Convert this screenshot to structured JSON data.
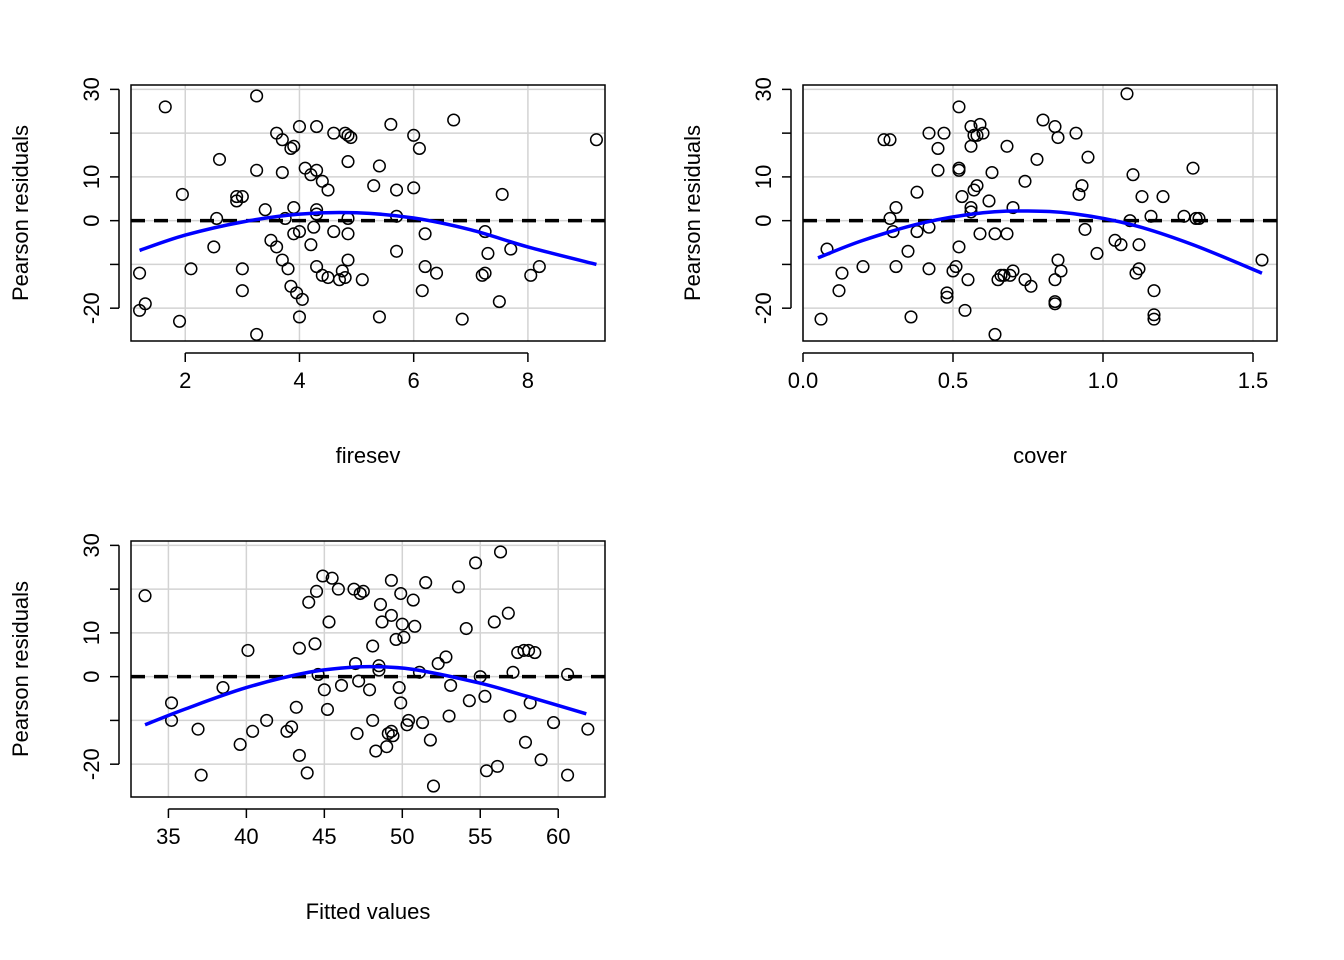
{
  "colors": {
    "fit_line": "#0000ff",
    "grid": "#d3d3d3",
    "zero_line": "#000000",
    "points": "#000000"
  },
  "chart_data": [
    {
      "type": "scatter",
      "xlabel": "firesev",
      "ylabel": "Pearson residuals",
      "xlim": [
        1.05,
        9.35
      ],
      "ylim": [
        -27.5,
        31
      ],
      "xticks": [
        2,
        4,
        6,
        8
      ],
      "yticks": [
        -20,
        -10,
        0,
        10,
        20,
        30
      ],
      "ytick_labels": [
        "-20",
        "",
        "0",
        "10",
        "",
        "30"
      ],
      "grid": true,
      "zero_line": true,
      "fit_curve": {
        "x": [
          1.2,
          2,
          3,
          4,
          5,
          6,
          7,
          8,
          9.2
        ],
        "y": [
          -6.8,
          -3.3,
          -0.3,
          1.5,
          1.8,
          0.6,
          -2.1,
          -6.0,
          -10.0
        ]
      },
      "points": [
        [
          1.2,
          -12
        ],
        [
          1.2,
          -20.5
        ],
        [
          1.3,
          -19
        ],
        [
          1.65,
          26
        ],
        [
          1.9,
          -23
        ],
        [
          1.95,
          6
        ],
        [
          2.1,
          -11
        ],
        [
          2.5,
          -6
        ],
        [
          2.55,
          0.5
        ],
        [
          2.6,
          14
        ],
        [
          2.9,
          4.5
        ],
        [
          2.9,
          5.5
        ],
        [
          3.0,
          5.5
        ],
        [
          3.0,
          -11
        ],
        [
          3.0,
          -16
        ],
        [
          3.25,
          28.5
        ],
        [
          3.25,
          11.5
        ],
        [
          3.25,
          -26
        ],
        [
          3.4,
          2.5
        ],
        [
          3.5,
          -4.5
        ],
        [
          3.6,
          20
        ],
        [
          3.6,
          -6
        ],
        [
          3.7,
          18.5
        ],
        [
          3.7,
          11
        ],
        [
          3.7,
          -9
        ],
        [
          3.75,
          0.5
        ],
        [
          3.8,
          -11
        ],
        [
          3.85,
          -15
        ],
        [
          3.85,
          16.5
        ],
        [
          3.9,
          17
        ],
        [
          3.9,
          3
        ],
        [
          3.9,
          -3
        ],
        [
          3.95,
          -16.5
        ],
        [
          4.0,
          21.5
        ],
        [
          4.0,
          -2.5
        ],
        [
          4.0,
          -22
        ],
        [
          4.05,
          -18
        ],
        [
          4.1,
          12
        ],
        [
          4.2,
          10.5
        ],
        [
          4.2,
          -5.5
        ],
        [
          4.25,
          -1.5
        ],
        [
          4.3,
          21.5
        ],
        [
          4.3,
          11.5
        ],
        [
          4.3,
          2.5
        ],
        [
          4.3,
          1.5
        ],
        [
          4.3,
          -10.5
        ],
        [
          4.4,
          9
        ],
        [
          4.4,
          -12.5
        ],
        [
          4.5,
          7
        ],
        [
          4.5,
          -13
        ],
        [
          4.6,
          20
        ],
        [
          4.6,
          -2.5
        ],
        [
          4.7,
          -13.5
        ],
        [
          4.75,
          -11.5
        ],
        [
          4.8,
          20
        ],
        [
          4.8,
          -13
        ],
        [
          4.85,
          19.5
        ],
        [
          4.85,
          13.5
        ],
        [
          4.85,
          0.5
        ],
        [
          4.85,
          -3
        ],
        [
          4.85,
          -9
        ],
        [
          4.9,
          19
        ],
        [
          5.1,
          -13.5
        ],
        [
          5.3,
          8
        ],
        [
          5.4,
          12.5
        ],
        [
          5.4,
          -22
        ],
        [
          5.6,
          22
        ],
        [
          5.7,
          7
        ],
        [
          5.7,
          1
        ],
        [
          5.7,
          -7
        ],
        [
          6.0,
          19.5
        ],
        [
          6.0,
          7.5
        ],
        [
          6.1,
          16.5
        ],
        [
          6.15,
          -16
        ],
        [
          6.2,
          -3
        ],
        [
          6.2,
          -10.5
        ],
        [
          6.4,
          -12
        ],
        [
          6.7,
          23
        ],
        [
          6.85,
          -22.5
        ],
        [
          7.2,
          -12.5
        ],
        [
          7.25,
          -12
        ],
        [
          7.25,
          -2.5
        ],
        [
          7.3,
          -7.5
        ],
        [
          7.5,
          -18.5
        ],
        [
          7.55,
          6
        ],
        [
          7.7,
          -6.5
        ],
        [
          8.05,
          -12.5
        ],
        [
          8.2,
          -10.5
        ],
        [
          9.2,
          18.5
        ]
      ]
    },
    {
      "type": "scatter",
      "xlabel": "cover",
      "ylabel": "Pearson residuals",
      "xlim": [
        0,
        1.58
      ],
      "ylim": [
        -27.5,
        31
      ],
      "xticks": [
        0.0,
        0.5,
        1.0,
        1.5
      ],
      "xtick_labels": [
        "0.0",
        "0.5",
        "1.0",
        "1.5"
      ],
      "yticks": [
        -20,
        -10,
        0,
        10,
        20,
        30
      ],
      "ytick_labels": [
        "-20",
        "",
        "0",
        "10",
        "",
        "30"
      ],
      "grid": true,
      "zero_line": true,
      "fit_curve": {
        "x": [
          0.05,
          0.2,
          0.4,
          0.6,
          0.75,
          0.9,
          1.1,
          1.3,
          1.53
        ],
        "y": [
          -8.5,
          -4.5,
          -0.5,
          1.8,
          2.2,
          1.6,
          -1.0,
          -5.5,
          -12.0
        ]
      },
      "points": [
        [
          0.06,
          -22.5
        ],
        [
          0.08,
          -6.5
        ],
        [
          0.12,
          -16
        ],
        [
          0.13,
          -12
        ],
        [
          0.2,
          -10.5
        ],
        [
          0.27,
          18.5
        ],
        [
          0.29,
          18.5
        ],
        [
          0.29,
          0.5
        ],
        [
          0.3,
          -2.5
        ],
        [
          0.31,
          3
        ],
        [
          0.31,
          -10.5
        ],
        [
          0.35,
          -7
        ],
        [
          0.36,
          -22
        ],
        [
          0.38,
          6.5
        ],
        [
          0.38,
          -2.5
        ],
        [
          0.42,
          20
        ],
        [
          0.42,
          -1.5
        ],
        [
          0.42,
          -11
        ],
        [
          0.45,
          16.5
        ],
        [
          0.45,
          11.5
        ],
        [
          0.47,
          20
        ],
        [
          0.48,
          -17.5
        ],
        [
          0.48,
          -16.5
        ],
        [
          0.5,
          -11.5
        ],
        [
          0.51,
          -10.5
        ],
        [
          0.52,
          26
        ],
        [
          0.52,
          12
        ],
        [
          0.52,
          11.5
        ],
        [
          0.52,
          -6
        ],
        [
          0.53,
          5.5
        ],
        [
          0.54,
          -20.5
        ],
        [
          0.55,
          -13.5
        ],
        [
          0.56,
          17
        ],
        [
          0.56,
          21.5
        ],
        [
          0.56,
          3
        ],
        [
          0.56,
          2
        ],
        [
          0.57,
          19.5
        ],
        [
          0.57,
          7
        ],
        [
          0.58,
          19.5
        ],
        [
          0.58,
          8
        ],
        [
          0.59,
          22
        ],
        [
          0.59,
          -3
        ],
        [
          0.6,
          20
        ],
        [
          0.62,
          4.5
        ],
        [
          0.63,
          11
        ],
        [
          0.64,
          -26
        ],
        [
          0.64,
          -3
        ],
        [
          0.65,
          -13.5
        ],
        [
          0.66,
          -12.5
        ],
        [
          0.67,
          -12.5
        ],
        [
          0.68,
          17
        ],
        [
          0.68,
          -3
        ],
        [
          0.69,
          -12.5
        ],
        [
          0.7,
          3
        ],
        [
          0.7,
          -11.5
        ],
        [
          0.74,
          9
        ],
        [
          0.74,
          -13.5
        ],
        [
          0.76,
          -15
        ],
        [
          0.78,
          14
        ],
        [
          0.8,
          23
        ],
        [
          0.84,
          21.5
        ],
        [
          0.84,
          -18.5
        ],
        [
          0.84,
          -19
        ],
        [
          0.84,
          -13.5
        ],
        [
          0.85,
          19
        ],
        [
          0.85,
          -9
        ],
        [
          0.86,
          -11.5
        ],
        [
          0.91,
          20
        ],
        [
          0.92,
          6
        ],
        [
          0.93,
          8
        ],
        [
          0.94,
          -2
        ],
        [
          0.95,
          14.5
        ],
        [
          0.98,
          -7.5
        ],
        [
          1.04,
          -4.5
        ],
        [
          1.06,
          -5.5
        ],
        [
          1.08,
          29
        ],
        [
          1.09,
          0
        ],
        [
          1.1,
          10.5
        ],
        [
          1.11,
          -12
        ],
        [
          1.12,
          -5.5
        ],
        [
          1.12,
          -11
        ],
        [
          1.13,
          5.5
        ],
        [
          1.16,
          1
        ],
        [
          1.17,
          -16
        ],
        [
          1.17,
          -21.5
        ],
        [
          1.17,
          -22.5
        ],
        [
          1.2,
          5.5
        ],
        [
          1.3,
          12
        ],
        [
          1.31,
          0.5
        ],
        [
          1.27,
          1
        ],
        [
          1.32,
          0.5
        ],
        [
          1.53,
          -9
        ]
      ]
    },
    {
      "type": "scatter",
      "xlabel": "Fitted values",
      "ylabel": "Pearson residuals",
      "xlim": [
        32.6,
        63
      ],
      "ylim": [
        -27.5,
        31
      ],
      "xticks": [
        35,
        40,
        45,
        50,
        55,
        60
      ],
      "yticks": [
        -20,
        -10,
        0,
        10,
        20,
        30
      ],
      "ytick_labels": [
        "-20",
        "",
        "0",
        "10",
        "",
        "30"
      ],
      "grid": true,
      "zero_line": true,
      "fit_curve": {
        "x": [
          33.5,
          36,
          40,
          44,
          47,
          49,
          51,
          55,
          58,
          61.8
        ],
        "y": [
          -11,
          -7.5,
          -2.5,
          1,
          2.2,
          2.2,
          1.5,
          -1.5,
          -4.5,
          -8.5
        ]
      },
      "points": [
        [
          33.5,
          18.5
        ],
        [
          35.2,
          -6
        ],
        [
          35.2,
          -10
        ],
        [
          36.9,
          -12
        ],
        [
          37.1,
          -22.5
        ],
        [
          38.5,
          -2.5
        ],
        [
          39.6,
          -15.5
        ],
        [
          40.1,
          6
        ],
        [
          40.4,
          -12.5
        ],
        [
          41.3,
          -10
        ],
        [
          42.6,
          -12.5
        ],
        [
          42.9,
          -11.5
        ],
        [
          43.2,
          -7
        ],
        [
          43.4,
          6.5
        ],
        [
          43.4,
          -18
        ],
        [
          43.9,
          -22
        ],
        [
          44,
          17
        ],
        [
          44.4,
          7.5
        ],
        [
          44.5,
          19.5
        ],
        [
          44.6,
          0.5
        ],
        [
          44.9,
          23
        ],
        [
          45,
          -3
        ],
        [
          45.2,
          -7.5
        ],
        [
          45.3,
          12.5
        ],
        [
          45.5,
          22.5
        ],
        [
          45.9,
          20
        ],
        [
          46.1,
          -2
        ],
        [
          46.9,
          20
        ],
        [
          47,
          3
        ],
        [
          47.1,
          -13
        ],
        [
          47.2,
          -1
        ],
        [
          47.3,
          19
        ],
        [
          47.5,
          19.5
        ],
        [
          47.9,
          -3
        ],
        [
          48.1,
          -10
        ],
        [
          48.1,
          7
        ],
        [
          48.3,
          -17
        ],
        [
          48.5,
          1.5
        ],
        [
          48.5,
          2.5
        ],
        [
          48.6,
          16.5
        ],
        [
          48.7,
          12.5
        ],
        [
          49,
          -16
        ],
        [
          49.1,
          -13
        ],
        [
          49.3,
          -12.5
        ],
        [
          49.3,
          22
        ],
        [
          49.3,
          14
        ],
        [
          49.4,
          -13.5
        ],
        [
          49.6,
          8.5
        ],
        [
          49.8,
          -2.5
        ],
        [
          49.9,
          -6
        ],
        [
          49.9,
          19
        ],
        [
          50,
          12
        ],
        [
          50.1,
          9
        ],
        [
          50.3,
          -11
        ],
        [
          50.4,
          -10
        ],
        [
          50.7,
          17.5
        ],
        [
          50.8,
          11.5
        ],
        [
          51.1,
          1
        ],
        [
          51.3,
          -10.5
        ],
        [
          51.5,
          21.5
        ],
        [
          51.8,
          -14.5
        ],
        [
          52,
          -25
        ],
        [
          52.3,
          3
        ],
        [
          52.8,
          4.5
        ],
        [
          53,
          -9
        ],
        [
          53.1,
          -2
        ],
        [
          53.6,
          20.5
        ],
        [
          54.1,
          11
        ],
        [
          54.3,
          -5.5
        ],
        [
          54.7,
          26
        ],
        [
          55.0,
          0
        ],
        [
          55.3,
          -4.5
        ],
        [
          55.4,
          -21.5
        ],
        [
          55.9,
          12.5
        ],
        [
          56.1,
          -20.5
        ],
        [
          56.3,
          28.5
        ],
        [
          56.8,
          14.5
        ],
        [
          56.9,
          -9
        ],
        [
          57.1,
          1
        ],
        [
          57.4,
          5.5
        ],
        [
          57.8,
          6
        ],
        [
          57.9,
          -15
        ],
        [
          58.1,
          6
        ],
        [
          58.2,
          -6
        ],
        [
          58.5,
          5.5
        ],
        [
          58.9,
          -19
        ],
        [
          59.7,
          -10.5
        ],
        [
          60.6,
          0.5
        ],
        [
          60.6,
          -22.5
        ],
        [
          61.9,
          -12
        ]
      ]
    }
  ]
}
